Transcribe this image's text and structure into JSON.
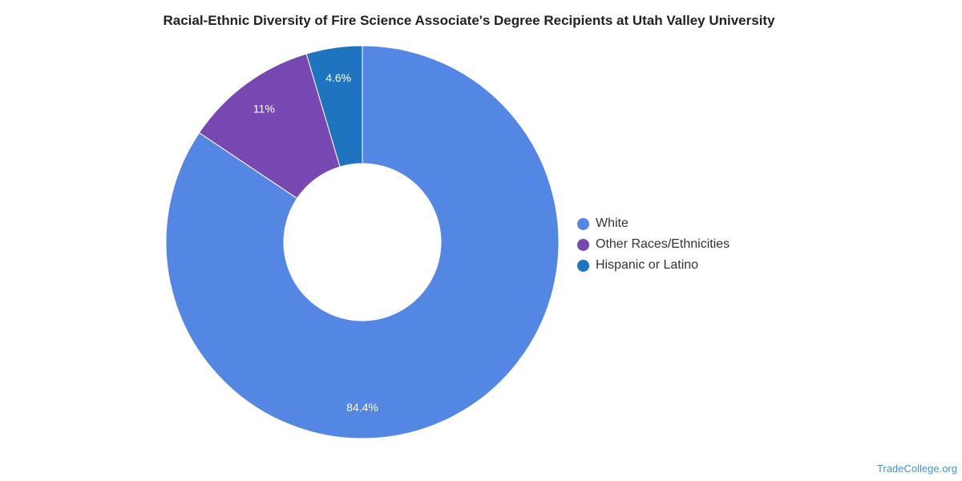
{
  "title": "Racial-Ethnic Diversity of Fire Science Associate's Degree Recipients at Utah Valley University",
  "watermark": "TradeCollege.org",
  "chart_data": {
    "type": "pie",
    "donut": true,
    "series": [
      {
        "name": "White",
        "value": 84.4,
        "label": "84.4%",
        "color": "#5486e3"
      },
      {
        "name": "Other Races/Ethnicities",
        "value": 11,
        "label": "11%",
        "color": "#7748b2"
      },
      {
        "name": "Hispanic or Latino",
        "value": 4.6,
        "label": "4.6%",
        "color": "#1f74c0"
      }
    ],
    "legend_position": "right"
  }
}
